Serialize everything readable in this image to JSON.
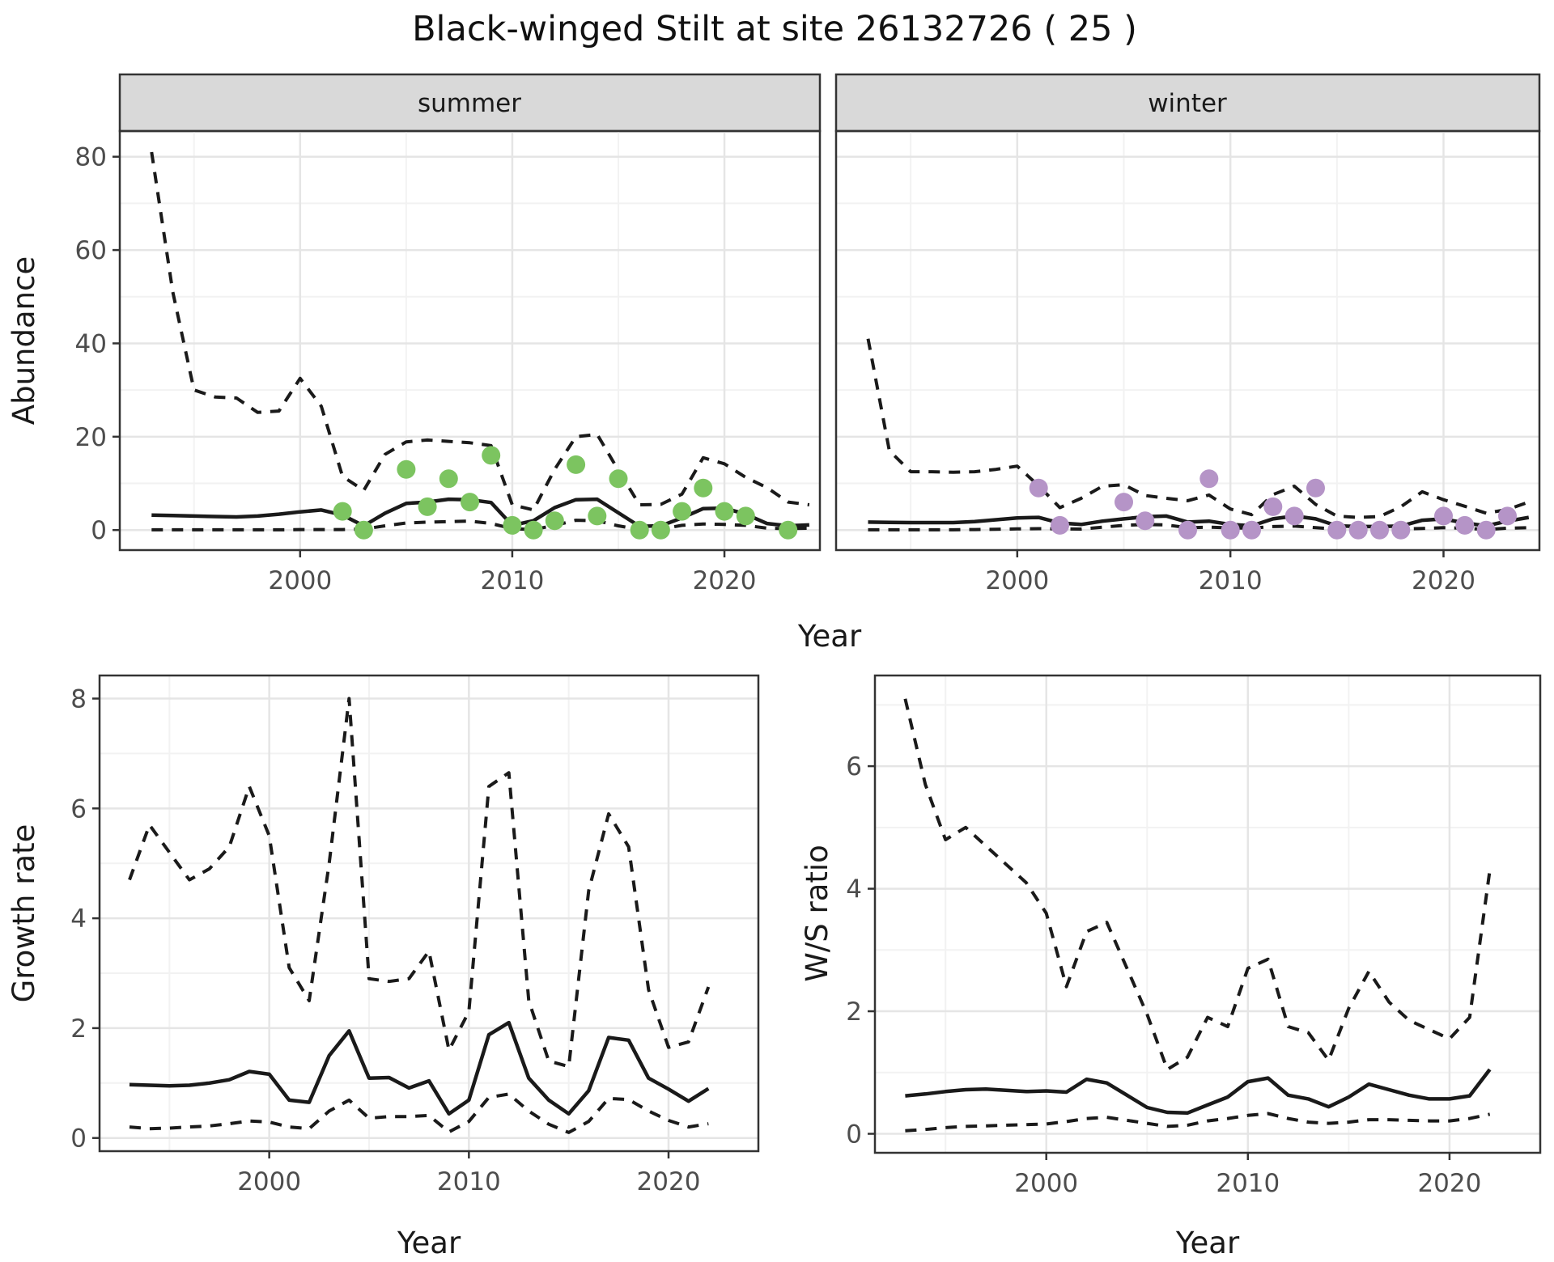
{
  "title": "Black-winged Stilt at site 26132726 ( 25 )",
  "colors": {
    "summer_points": "#7cc460",
    "winter_points": "#b594c7",
    "lines": "#1a1a1a",
    "strip_fill": "#d9d9d9",
    "tick_text": "#4d4d4d"
  },
  "chart_data": [
    {
      "id": "abundance_by_season",
      "type": "line",
      "title": "Black-winged Stilt at site 26132726 ( 25 )",
      "facets": [
        "summer",
        "winter"
      ],
      "xlabel": "Year",
      "ylabel": "Abundance",
      "xlim": [
        1991.5,
        2024.5
      ],
      "ylim": [
        -4.3,
        85.5
      ],
      "xticks": [
        2000,
        2010,
        2020
      ],
      "x_minor": [
        1995,
        2005,
        2015
      ],
      "yticks": [
        0,
        20,
        40,
        60,
        80
      ],
      "y_minor": [
        10,
        30,
        50,
        70
      ],
      "legend_position": "none",
      "grid": true,
      "years": [
        1993,
        1994,
        1995,
        1996,
        1997,
        1998,
        1999,
        2000,
        2001,
        2002,
        2003,
        2004,
        2005,
        2006,
        2007,
        2008,
        2009,
        2010,
        2011,
        2012,
        2013,
        2014,
        2015,
        2016,
        2017,
        2018,
        2019,
        2020,
        2021,
        2022,
        2023,
        2024
      ],
      "panels": [
        {
          "facet": "summer",
          "point_color": "#7cc460",
          "upper_ci": [
            81,
            51,
            30,
            28.5,
            28.3,
            25.2,
            25.5,
            32.5,
            26.5,
            11.5,
            8.5,
            16.2,
            18.9,
            19.3,
            19,
            18.7,
            18.1,
            5.4,
            4.3,
            13,
            20,
            20.5,
            12.8,
            5.4,
            5.5,
            7.7,
            15.5,
            14.2,
            11.3,
            9.1,
            6,
            5.4
          ],
          "median": [
            3.2,
            3.1,
            3,
            2.9,
            2.8,
            3,
            3.4,
            3.9,
            4.3,
            3.2,
            0.9,
            3.6,
            5.7,
            6,
            6.6,
            6.5,
            5.9,
            1,
            2,
            4.8,
            6.5,
            6.6,
            3.7,
            0.8,
            0.9,
            2.6,
            4.6,
            4.7,
            3.4,
            1.4,
            0.9,
            1.1
          ],
          "lower_ci": [
            0.05,
            0.05,
            0.05,
            0.05,
            0.05,
            0.05,
            0.05,
            0.1,
            0.1,
            0.1,
            0.2,
            0.9,
            1.5,
            1.7,
            1.8,
            1.9,
            1.4,
            0.3,
            0.1,
            1,
            2.1,
            2,
            0.9,
            0.1,
            0.2,
            1,
            1.3,
            1.2,
            1,
            0.4,
            0.3,
            0.4
          ],
          "obs_years": [
            2002,
            2003,
            2005,
            2006,
            2007,
            2008,
            2009,
            2010,
            2011,
            2012,
            2013,
            2014,
            2015,
            2016,
            2017,
            2018,
            2019,
            2020,
            2021,
            2023
          ],
          "obs_values": [
            4,
            0,
            13,
            5,
            11,
            6,
            16,
            1,
            0,
            2,
            14,
            3,
            11,
            0,
            0,
            4,
            9,
            4,
            3,
            0
          ]
        },
        {
          "facet": "winter",
          "point_color": "#b594c7",
          "upper_ci": [
            41,
            17,
            12.5,
            12.5,
            12.4,
            12.5,
            13,
            13.7,
            9.5,
            4.8,
            6.8,
            9.4,
            9.7,
            7.4,
            6.8,
            6.3,
            7.5,
            4.5,
            3.3,
            7.6,
            9.4,
            5.5,
            3,
            2.7,
            2.9,
            5,
            8.2,
            6.5,
            5.1,
            3.6,
            4.4,
            6
          ],
          "median": [
            1.7,
            1.65,
            1.6,
            1.6,
            1.6,
            1.8,
            2.2,
            2.6,
            2.7,
            1.5,
            1.2,
            1.9,
            2.4,
            2.85,
            3,
            1.7,
            1.9,
            1.2,
            0.9,
            2.4,
            3,
            2.4,
            0.9,
            0.75,
            0.75,
            0.85,
            2.1,
            2.4,
            1.5,
            0.9,
            1.9,
            2.7
          ],
          "lower_ci": [
            0.05,
            0.05,
            0.05,
            0.05,
            0.05,
            0.1,
            0.15,
            0.25,
            0.3,
            0.25,
            0.2,
            0.6,
            1,
            1.2,
            1.1,
            0.5,
            0.6,
            0.45,
            0.4,
            0.75,
            0.85,
            0.5,
            0.2,
            0.15,
            0.15,
            0.2,
            0.35,
            0.5,
            0.4,
            0.1,
            0.4,
            0.5
          ],
          "obs_years": [
            2001,
            2002,
            2005,
            2006,
            2008,
            2009,
            2010,
            2011,
            2012,
            2013,
            2014,
            2015,
            2016,
            2017,
            2018,
            2020,
            2021,
            2022,
            2023
          ],
          "obs_values": [
            9,
            1,
            6,
            2,
            0,
            11,
            0,
            0,
            5,
            3,
            9,
            0,
            0,
            0,
            0,
            3,
            1,
            0,
            3
          ]
        }
      ]
    },
    {
      "id": "growth_rate",
      "type": "line",
      "xlabel": "Year",
      "ylabel": "Growth rate",
      "xlim": [
        1991.5,
        2024.5
      ],
      "ylim": [
        -0.24,
        8.42
      ],
      "xticks": [
        2000,
        2010,
        2020
      ],
      "x_minor": [
        1995,
        2005,
        2015
      ],
      "yticks": [
        0,
        2,
        4,
        6,
        8
      ],
      "y_minor": [
        1,
        3,
        5,
        7
      ],
      "legend_position": "none",
      "grid": true,
      "years": [
        1993,
        1994,
        1995,
        1996,
        1997,
        1998,
        1999,
        2000,
        2001,
        2002,
        2003,
        2004,
        2005,
        2006,
        2007,
        2008,
        2009,
        2010,
        2011,
        2012,
        2013,
        2014,
        2015,
        2016,
        2017,
        2018,
        2019,
        2020,
        2021,
        2022
      ],
      "panels": [
        {
          "upper_ci": [
            4.7,
            5.7,
            5.2,
            4.7,
            4.9,
            5.3,
            6.4,
            5.5,
            3.1,
            2.5,
            5,
            8,
            2.9,
            2.85,
            2.9,
            3.4,
            1.6,
            2.3,
            6.4,
            6.65,
            2.5,
            1.4,
            1.3,
            4.5,
            5.9,
            5.3,
            2.7,
            1.65,
            1.75,
            2.75
          ],
          "median": [
            0.97,
            0.96,
            0.95,
            0.96,
            1,
            1.06,
            1.21,
            1.16,
            0.69,
            0.65,
            1.5,
            1.95,
            1.09,
            1.1,
            0.91,
            1.04,
            0.44,
            0.69,
            1.88,
            2.1,
            1.09,
            0.69,
            0.44,
            0.86,
            1.83,
            1.78,
            1.09,
            0.89,
            0.67,
            0.9
          ],
          "lower_ci": [
            0.2,
            0.17,
            0.18,
            0.2,
            0.22,
            0.26,
            0.31,
            0.29,
            0.2,
            0.17,
            0.49,
            0.69,
            0.36,
            0.39,
            0.39,
            0.41,
            0.11,
            0.3,
            0.74,
            0.8,
            0.49,
            0.25,
            0.1,
            0.3,
            0.72,
            0.7,
            0.49,
            0.32,
            0.2,
            0.26
          ]
        }
      ]
    },
    {
      "id": "winter_summer_ratio",
      "type": "line",
      "xlabel": "Year",
      "ylabel": "W/S ratio",
      "xlim": [
        1991.5,
        2024.5
      ],
      "ylim": [
        -0.31,
        7.48
      ],
      "xticks": [
        2000,
        2010,
        2020
      ],
      "x_minor": [
        1995,
        2005,
        2015
      ],
      "yticks": [
        0,
        2,
        4,
        6
      ],
      "y_minor": [
        1,
        3,
        5,
        7
      ],
      "legend_position": "none",
      "grid": true,
      "years": [
        1993,
        1994,
        1995,
        1996,
        1997,
        1998,
        1999,
        2000,
        2001,
        2002,
        2003,
        2004,
        2005,
        2006,
        2007,
        2008,
        2009,
        2010,
        2011,
        2012,
        2013,
        2014,
        2015,
        2016,
        2017,
        2018,
        2019,
        2020,
        2021,
        2022
      ],
      "panels": [
        {
          "upper_ci": [
            7.1,
            5.7,
            4.8,
            5,
            4.7,
            4.4,
            4.1,
            3.6,
            2.4,
            3.3,
            3.45,
            2.7,
            1.95,
            1.05,
            1.25,
            1.9,
            1.75,
            2.7,
            2.85,
            1.75,
            1.65,
            1.2,
            2.05,
            2.65,
            2.15,
            1.85,
            1.7,
            1.55,
            1.9,
            4.3
          ],
          "median": [
            0.62,
            0.65,
            0.69,
            0.72,
            0.73,
            0.71,
            0.69,
            0.7,
            0.68,
            0.89,
            0.83,
            0.63,
            0.43,
            0.35,
            0.34,
            0.47,
            0.6,
            0.85,
            0.91,
            0.63,
            0.57,
            0.44,
            0.6,
            0.81,
            0.72,
            0.63,
            0.57,
            0.57,
            0.62,
            1.05
          ],
          "lower_ci": [
            0.05,
            0.07,
            0.1,
            0.12,
            0.13,
            0.14,
            0.15,
            0.16,
            0.2,
            0.25,
            0.27,
            0.22,
            0.17,
            0.12,
            0.14,
            0.21,
            0.25,
            0.3,
            0.33,
            0.25,
            0.19,
            0.17,
            0.19,
            0.23,
            0.23,
            0.22,
            0.21,
            0.21,
            0.25,
            0.32
          ]
        }
      ]
    }
  ]
}
